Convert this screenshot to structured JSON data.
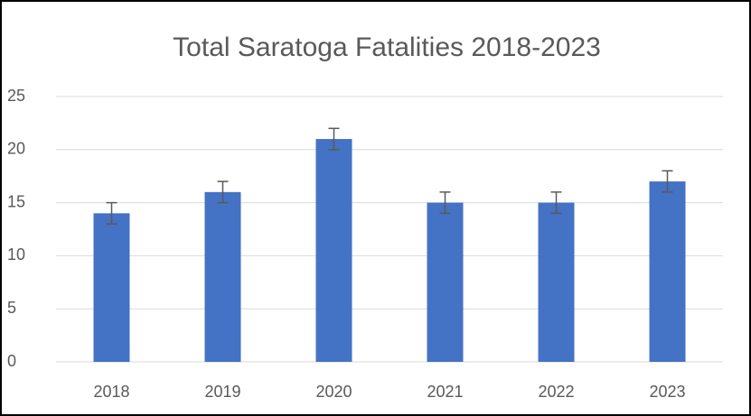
{
  "chart_data": {
    "type": "bar",
    "title": "Total Saratoga Fatalities 2018-2023",
    "categories": [
      "2018",
      "2019",
      "2020",
      "2021",
      "2022",
      "2023"
    ],
    "values": [
      14,
      16,
      21,
      15,
      15,
      17
    ],
    "errors": [
      1,
      1,
      1,
      1,
      1,
      1
    ],
    "color": "#4472c4",
    "error_color": "#595959",
    "ylim": [
      0,
      25
    ],
    "yticks": [
      0,
      5,
      10,
      15,
      20,
      25
    ],
    "grid": true
  }
}
